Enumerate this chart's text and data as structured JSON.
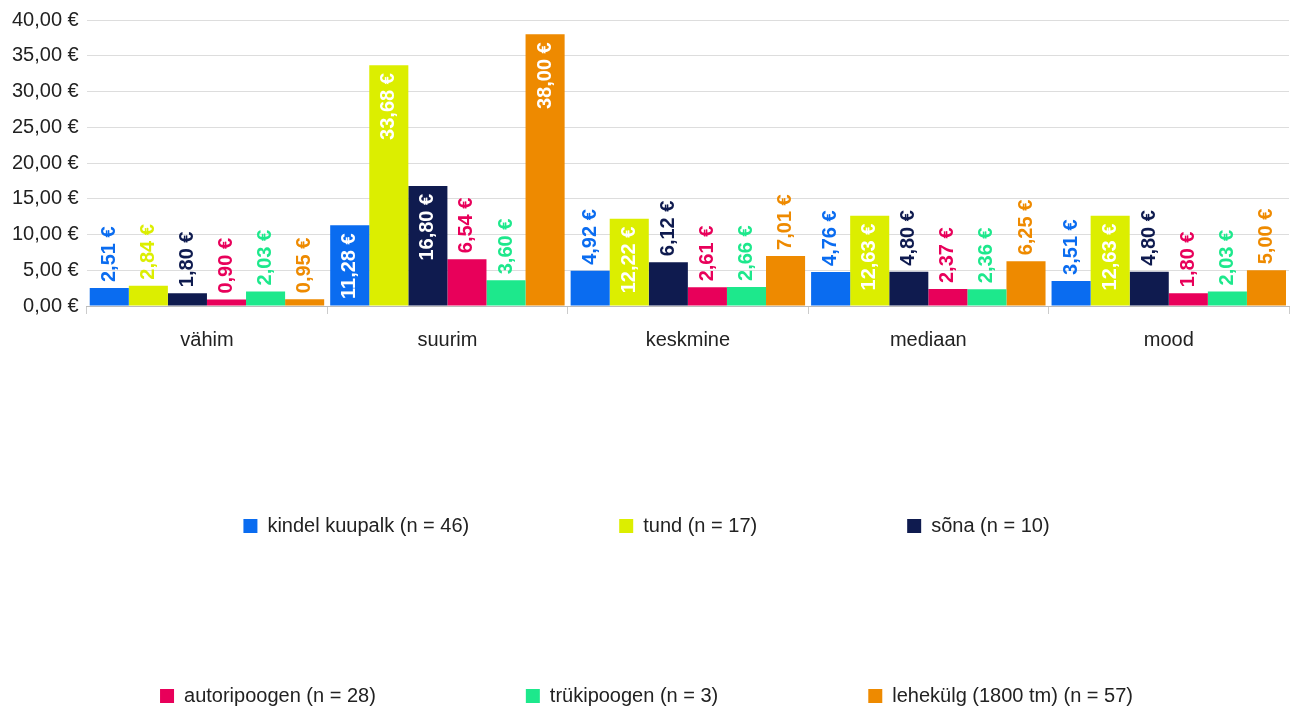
{
  "chart_data": {
    "type": "bar",
    "categories": [
      "vähim",
      "suurim",
      "keskmine",
      "mediaan",
      "mood"
    ],
    "series": [
      {
        "name": "kindel kuupalk (n = 46)",
        "color": "#0a6cf0",
        "values": [
          2.51,
          11.28,
          4.92,
          4.76,
          3.51
        ],
        "value_labels": [
          "2,51 €",
          "11,28 €",
          "4,92 €",
          "4,76 €",
          "3,51 €"
        ]
      },
      {
        "name": "tund (n = 17)",
        "color": "#dcee00",
        "values": [
          2.84,
          33.68,
          12.22,
          12.63,
          12.63
        ],
        "value_labels": [
          "2,84 €",
          "33,68 €",
          "12,22 €",
          "12,63 €",
          "12,63 €"
        ]
      },
      {
        "name": "sõna (n = 10)",
        "color": "#0f1b4f",
        "values": [
          1.8,
          16.8,
          6.12,
          4.8,
          4.8
        ],
        "value_labels": [
          "1,80 €",
          "16,80 €",
          "6,12 €",
          "4,80 €",
          "4,80 €"
        ]
      },
      {
        "name": "autoripoogen (n = 28)",
        "color": "#e8005a",
        "values": [
          0.9,
          6.54,
          2.61,
          2.37,
          1.8
        ],
        "value_labels": [
          "0,90 €",
          "6,54 €",
          "2,61 €",
          "2,37 €",
          "1,80 €"
        ]
      },
      {
        "name": "trükipoogen (n = 3)",
        "color": "#1de88c",
        "values": [
          2.03,
          3.6,
          2.66,
          2.36,
          2.03
        ],
        "value_labels": [
          "2,03 €",
          "3,60 €",
          "2,66 €",
          "2,36 €",
          "2,03 €"
        ]
      },
      {
        "name": "lehekülg (1800 tm) (n = 57)",
        "color": "#ee8a00",
        "values": [
          0.95,
          38.0,
          7.01,
          6.25,
          5.0
        ],
        "value_labels": [
          "0,95 €",
          "38,00 €",
          "7,01 €",
          "6,25 €",
          "5,00 €"
        ]
      }
    ],
    "ylim": [
      0,
      40
    ],
    "yticks": [
      {
        "value": 0,
        "label": "0,00 €"
      },
      {
        "value": 5,
        "label": "5,00 €"
      },
      {
        "value": 10,
        "label": "10,00 €"
      },
      {
        "value": 15,
        "label": "15,00 €"
      },
      {
        "value": 20,
        "label": "20,00 €"
      },
      {
        "value": 25,
        "label": "25,00 €"
      },
      {
        "value": 30,
        "label": "30,00 €"
      },
      {
        "value": 35,
        "label": "35,00 €"
      },
      {
        "value": 40,
        "label": "40,00 €"
      }
    ],
    "grid": "y",
    "legend": "bottom"
  }
}
